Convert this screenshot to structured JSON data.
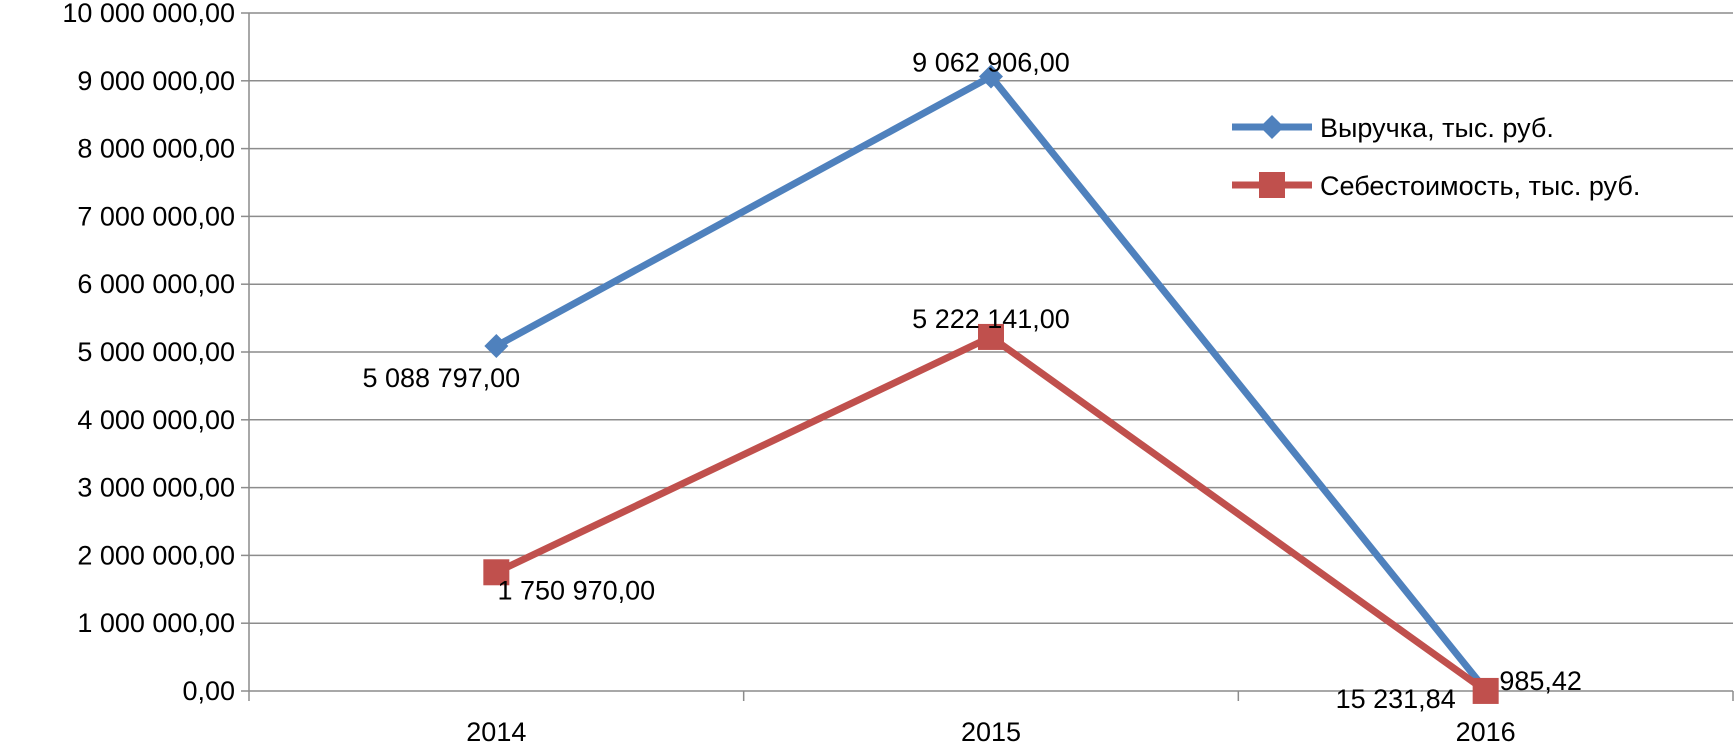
{
  "chart_data": {
    "type": "line",
    "categories": [
      "2014",
      "2015",
      "2016"
    ],
    "ylim": [
      0,
      10000000
    ],
    "ytick_values": [
      0,
      1000000,
      2000000,
      3000000,
      4000000,
      5000000,
      6000000,
      7000000,
      8000000,
      9000000,
      10000000
    ],
    "ytick_labels": [
      "0,00",
      "1 000 000,00",
      "2 000 000,00",
      "3 000 000,00",
      "4 000 000,00",
      "5 000 000,00",
      "6 000 000,00",
      "7 000 000,00",
      "8 000 000,00",
      "9 000 000,00",
      "10 000 000,00"
    ],
    "grid": "horizontal",
    "legend_position": "right",
    "series": [
      {
        "name": "Выручка, тыс. руб.",
        "color": "#4F81BD",
        "marker": "diamond",
        "values": [
          5088797.0,
          9062906.0,
          15231.84
        ],
        "labels": [
          "5 088 797,00",
          "9 062 906,00",
          "15 231,84"
        ]
      },
      {
        "name": "Себестоимость, тыс. руб.",
        "color": "#C0504D",
        "marker": "square",
        "values": [
          1750970.0,
          5222141.0,
          985.42
        ],
        "labels": [
          "1 750 970,00",
          "5 222 141,00",
          "985,42"
        ]
      }
    ]
  }
}
